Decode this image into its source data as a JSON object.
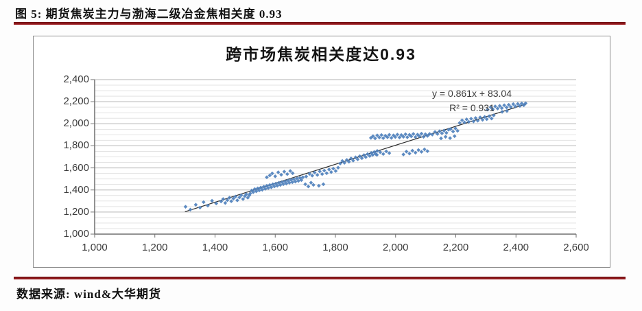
{
  "page": {
    "header_title": "图 5: 期货焦炭主力与渤海二级冶金焦相关度 0.93",
    "footer_source": "数据来源: wind&大华期货",
    "accent_color": "#9a1c1e"
  },
  "chart_data": {
    "type": "scatter",
    "title": "跨市场焦炭相关度达0.93",
    "xlabel": "",
    "ylabel": "",
    "xlim": [
      1000,
      2600
    ],
    "ylim": [
      1000,
      2400
    ],
    "x_ticks": [
      1000,
      1200,
      1400,
      1600,
      1800,
      2000,
      2200,
      2400,
      2600
    ],
    "x_tick_labels": [
      "1,000",
      "1,200",
      "1,400",
      "1,600",
      "1,800",
      "2,000",
      "2,200",
      "2,400",
      "2,600"
    ],
    "y_ticks": [
      1000,
      1200,
      1400,
      1600,
      1800,
      2000,
      2200,
      2400
    ],
    "y_tick_labels": [
      "1,000",
      "1,200",
      "1,400",
      "1,600",
      "1,800",
      "2,000",
      "2,200",
      "2,400"
    ],
    "grid": true,
    "major_grid_step": 200,
    "minor_grid_step": 50,
    "major_grid_color": "#b3b3b3",
    "minor_grid_color": "#e3e3e3",
    "axis_color": "#6e6e6e",
    "point_color": "#4f81bd",
    "legend_position": "none",
    "trendline": {
      "equation_label": "y = 0.861x + 83.04",
      "r2_label": "R² = 0.931",
      "slope": 0.861,
      "intercept": 83.04,
      "x_start": 1300,
      "x_end": 2435,
      "color": "#2b2b2b"
    },
    "points": [
      [
        1302,
        1248
      ],
      [
        1318,
        1222
      ],
      [
        1336,
        1266
      ],
      [
        1350,
        1240
      ],
      [
        1362,
        1290
      ],
      [
        1376,
        1258
      ],
      [
        1390,
        1302
      ],
      [
        1404,
        1278
      ],
      [
        1420,
        1296
      ],
      [
        1427,
        1318
      ],
      [
        1434,
        1282
      ],
      [
        1441,
        1308
      ],
      [
        1448,
        1330
      ],
      [
        1454,
        1298
      ],
      [
        1461,
        1322
      ],
      [
        1468,
        1340
      ],
      [
        1474,
        1306
      ],
      [
        1481,
        1332
      ],
      [
        1487,
        1352
      ],
      [
        1493,
        1318
      ],
      [
        1499,
        1344
      ],
      [
        1504,
        1362
      ],
      [
        1509,
        1330
      ],
      [
        1514,
        1352
      ],
      [
        1517,
        1368
      ],
      [
        1522,
        1396
      ],
      [
        1527,
        1380
      ],
      [
        1532,
        1408
      ],
      [
        1537,
        1388
      ],
      [
        1542,
        1415
      ],
      [
        1547,
        1396
      ],
      [
        1552,
        1422
      ],
      [
        1557,
        1402
      ],
      [
        1562,
        1430
      ],
      [
        1567,
        1410
      ],
      [
        1572,
        1438
      ],
      [
        1577,
        1418
      ],
      [
        1582,
        1445
      ],
      [
        1587,
        1424
      ],
      [
        1592,
        1452
      ],
      [
        1597,
        1432
      ],
      [
        1602,
        1458
      ],
      [
        1607,
        1438
      ],
      [
        1612,
        1465
      ],
      [
        1617,
        1445
      ],
      [
        1622,
        1472
      ],
      [
        1627,
        1452
      ],
      [
        1632,
        1478
      ],
      [
        1637,
        1458
      ],
      [
        1642,
        1485
      ],
      [
        1647,
        1465
      ],
      [
        1652,
        1492
      ],
      [
        1657,
        1470
      ],
      [
        1662,
        1498
      ],
      [
        1667,
        1476
      ],
      [
        1672,
        1505
      ],
      [
        1677,
        1482
      ],
      [
        1682,
        1510
      ],
      [
        1687,
        1490
      ],
      [
        1692,
        1515
      ],
      [
        1572,
        1515
      ],
      [
        1582,
        1532
      ],
      [
        1590,
        1550
      ],
      [
        1600,
        1524
      ],
      [
        1610,
        1560
      ],
      [
        1620,
        1538
      ],
      [
        1630,
        1566
      ],
      [
        1640,
        1544
      ],
      [
        1650,
        1572
      ],
      [
        1658,
        1552
      ],
      [
        1700,
        1452
      ],
      [
        1710,
        1432
      ],
      [
        1719,
        1466
      ],
      [
        1727,
        1446
      ],
      [
        1745,
        1438
      ],
      [
        1760,
        1452
      ],
      [
        1703,
        1522
      ],
      [
        1714,
        1546
      ],
      [
        1723,
        1530
      ],
      [
        1731,
        1558
      ],
      [
        1740,
        1536
      ],
      [
        1748,
        1568
      ],
      [
        1756,
        1544
      ],
      [
        1763,
        1576
      ],
      [
        1771,
        1552
      ],
      [
        1779,
        1586
      ],
      [
        1786,
        1562
      ],
      [
        1793,
        1594
      ],
      [
        1801,
        1572
      ],
      [
        1809,
        1602
      ],
      [
        1816,
        1640
      ],
      [
        1823,
        1663
      ],
      [
        1830,
        1646
      ],
      [
        1838,
        1672
      ],
      [
        1845,
        1656
      ],
      [
        1852,
        1686
      ],
      [
        1859,
        1666
      ],
      [
        1867,
        1696
      ],
      [
        1874,
        1678
      ],
      [
        1881,
        1706
      ],
      [
        1888,
        1688
      ],
      [
        1895,
        1716
      ],
      [
        1901,
        1698
      ],
      [
        1907,
        1726
      ],
      [
        1914,
        1708
      ],
      [
        1919,
        1736
      ],
      [
        1924,
        1718
      ],
      [
        1929,
        1744
      ],
      [
        1934,
        1726
      ],
      [
        1939,
        1754
      ],
      [
        1918,
        1872
      ],
      [
        1925,
        1888
      ],
      [
        1932,
        1868
      ],
      [
        1939,
        1895
      ],
      [
        1946,
        1876
      ],
      [
        1953,
        1898
      ],
      [
        1959,
        1870
      ],
      [
        1966,
        1892
      ],
      [
        1973,
        1878
      ],
      [
        1979,
        1900
      ],
      [
        1986,
        1872
      ],
      [
        1993,
        1895
      ],
      [
        1999,
        1880
      ],
      [
        2006,
        1902
      ],
      [
        2013,
        1876
      ],
      [
        2019,
        1898
      ],
      [
        2026,
        1882
      ],
      [
        2033,
        1905
      ],
      [
        2039,
        1878
      ],
      [
        2046,
        1900
      ],
      [
        2052,
        1886
      ],
      [
        2059,
        1908
      ],
      [
        2066,
        1880
      ],
      [
        2073,
        1902
      ],
      [
        2079,
        1888
      ],
      [
        2086,
        1910
      ],
      [
        2093,
        1882
      ],
      [
        2099,
        1905
      ],
      [
        2106,
        1890
      ],
      [
        2113,
        1908
      ],
      [
        1938,
        1718
      ],
      [
        1949,
        1742
      ],
      [
        1959,
        1726
      ],
      [
        1969,
        1750
      ],
      [
        1979,
        1734
      ],
      [
        2026,
        1722
      ],
      [
        2036,
        1748
      ],
      [
        2046,
        1730
      ],
      [
        2056,
        1756
      ],
      [
        2066,
        1738
      ],
      [
        2076,
        1762
      ],
      [
        2086,
        1746
      ],
      [
        2096,
        1768
      ],
      [
        2106,
        1752
      ],
      [
        2122,
        1902
      ],
      [
        2131,
        1926
      ],
      [
        2139,
        1908
      ],
      [
        2146,
        1932
      ],
      [
        2154,
        1914
      ],
      [
        2161,
        1938
      ],
      [
        2169,
        1918
      ],
      [
        2176,
        1946
      ],
      [
        2151,
        1868
      ],
      [
        2166,
        1882
      ],
      [
        2181,
        1870
      ],
      [
        2196,
        1888
      ],
      [
        2183,
        1952
      ],
      [
        2191,
        1930
      ],
      [
        2199,
        1958
      ],
      [
        2206,
        1936
      ],
      [
        2213,
        2008
      ],
      [
        2221,
        2032
      ],
      [
        2229,
        2012
      ],
      [
        2236,
        2040
      ],
      [
        2243,
        2018
      ],
      [
        2251,
        2046
      ],
      [
        2259,
        2022
      ],
      [
        2266,
        2052
      ],
      [
        2273,
        2028
      ],
      [
        2281,
        2058
      ],
      [
        2289,
        2036
      ],
      [
        2296,
        2062
      ],
      [
        2303,
        2042
      ],
      [
        2311,
        2068
      ],
      [
        2319,
        2048
      ],
      [
        2326,
        2076
      ],
      [
        2306,
        2128
      ],
      [
        2316,
        2150
      ],
      [
        2323,
        2132
      ],
      [
        2331,
        2158
      ],
      [
        2339,
        2138
      ],
      [
        2346,
        2162
      ],
      [
        2353,
        2142
      ],
      [
        2361,
        2168
      ],
      [
        2369,
        2148
      ],
      [
        2376,
        2172
      ],
      [
        2383,
        2152
      ],
      [
        2391,
        2178
      ],
      [
        2398,
        2158
      ],
      [
        2406,
        2180
      ],
      [
        2413,
        2162
      ],
      [
        2419,
        2184
      ],
      [
        2426,
        2168
      ],
      [
        2432,
        2186
      ],
      [
        2354,
        2108
      ],
      [
        2370,
        2116
      ]
    ]
  }
}
